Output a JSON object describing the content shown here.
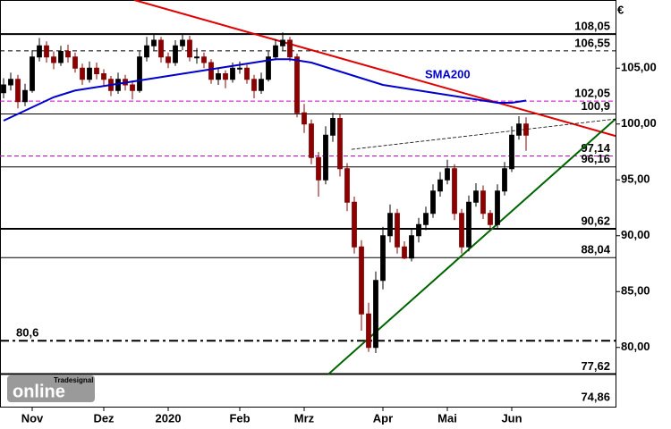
{
  "chart_data": {
    "type": "candlestick",
    "currency": "€",
    "logo_small": "Tradesignal",
    "logo": "online",
    "annotation": {
      "text": "SMA200",
      "color": "#0000cc"
    },
    "categories": [
      null,
      null,
      null,
      null,
      "Nov",
      null,
      null,
      null,
      null,
      null,
      null,
      null,
      null,
      null,
      "Dez",
      null,
      null,
      null,
      null,
      null,
      null,
      null,
      null,
      "2020",
      null,
      null,
      null,
      null,
      null,
      null,
      null,
      null,
      null,
      "Feb",
      null,
      null,
      null,
      null,
      null,
      null,
      null,
      null,
      "Mrz",
      null,
      null,
      null,
      null,
      null,
      null,
      null,
      null,
      null,
      null,
      "Apr",
      null,
      null,
      null,
      null,
      null,
      null,
      null,
      null,
      "Mai",
      null,
      null,
      null,
      null,
      null,
      null,
      null,
      null,
      "Jun",
      null,
      null
    ],
    "candles": [
      [
        102.8,
        104.1,
        102.3,
        103.5
      ],
      [
        103.5,
        104.6,
        103,
        104
      ],
      [
        104,
        104.4,
        101.4,
        102
      ],
      [
        102,
        103.6,
        101.6,
        103
      ],
      [
        103,
        106.6,
        102.8,
        106
      ],
      [
        106,
        107.7,
        105.6,
        107
      ],
      [
        107,
        107.4,
        105.5,
        106
      ],
      [
        106,
        106.5,
        104.9,
        105.5
      ],
      [
        105.5,
        107,
        105.2,
        106.5
      ],
      [
        106.5,
        107.1,
        105.5,
        106
      ],
      [
        106,
        106.4,
        104.6,
        105
      ],
      [
        105,
        105.4,
        103.5,
        104
      ],
      [
        104,
        105.6,
        103.7,
        105
      ],
      [
        105,
        105.5,
        104,
        104.5
      ],
      [
        104.5,
        104.9,
        103.4,
        104
      ],
      [
        104,
        104.3,
        102.5,
        103
      ],
      [
        103,
        104.6,
        102.7,
        104
      ],
      [
        104,
        104.4,
        103,
        103.5
      ],
      [
        103.5,
        103.9,
        102.2,
        103
      ],
      [
        103,
        106.5,
        102.8,
        106
      ],
      [
        106,
        107.8,
        105.6,
        107
      ],
      [
        107,
        108,
        106.6,
        107.5
      ],
      [
        107.5,
        107.8,
        105.5,
        106
      ],
      [
        106,
        106.4,
        105,
        105.5
      ],
      [
        105.5,
        107.5,
        105.2,
        107
      ],
      [
        107,
        108.1,
        106.6,
        107.5
      ],
      [
        107.5,
        107.9,
        105.6,
        106
      ],
      [
        106,
        106.8,
        105.4,
        106
      ],
      [
        106,
        106.4,
        105,
        105.5
      ],
      [
        105.5,
        105.8,
        103.6,
        104
      ],
      [
        104,
        105,
        103.5,
        104.5
      ],
      [
        104.5,
        104.8,
        103.2,
        104
      ],
      [
        104,
        105.5,
        103.7,
        105
      ],
      [
        105,
        105.6,
        104.5,
        105
      ],
      [
        105,
        105.3,
        103.6,
        104
      ],
      [
        104,
        104.4,
        102.3,
        103
      ],
      [
        103,
        104.6,
        102.7,
        104
      ],
      [
        104,
        106.5,
        103.8,
        106
      ],
      [
        106,
        107.6,
        105.7,
        107
      ],
      [
        107,
        108.2,
        106.6,
        107.5
      ],
      [
        107.5,
        107.8,
        105.6,
        106
      ],
      [
        106,
        106.3,
        100.6,
        101
      ],
      [
        101,
        101.8,
        99.2,
        100
      ],
      [
        100,
        100.4,
        96.4,
        97
      ],
      [
        97,
        97.5,
        93.5,
        95
      ],
      [
        95,
        99.8,
        94.6,
        99
      ],
      [
        99,
        101,
        98.4,
        100.5
      ],
      [
        100.5,
        100.9,
        95.3,
        96
      ],
      [
        96,
        96.5,
        92.2,
        93
      ],
      [
        93,
        93.5,
        88.4,
        89
      ],
      [
        89,
        89.6,
        81.5,
        83
      ],
      [
        83,
        84,
        79.6,
        80
      ],
      [
        80,
        86.8,
        79.5,
        86
      ],
      [
        86,
        90.8,
        85.2,
        90
      ],
      [
        90,
        92.8,
        89.4,
        92
      ],
      [
        92,
        92.4,
        88.4,
        89
      ],
      [
        89,
        89.5,
        87.9,
        88
      ],
      [
        88,
        90.6,
        87.7,
        90
      ],
      [
        90,
        91.6,
        89.4,
        91
      ],
      [
        91,
        92.6,
        90.5,
        92
      ],
      [
        92,
        94.6,
        91.6,
        94
      ],
      [
        94,
        95.7,
        93.5,
        95
      ],
      [
        95,
        96.8,
        94.6,
        96
      ],
      [
        96,
        96.4,
        91.4,
        92
      ],
      [
        92,
        92.4,
        88.4,
        89
      ],
      [
        89,
        93.6,
        88.6,
        93
      ],
      [
        93,
        94.7,
        92.6,
        94
      ],
      [
        94,
        94.5,
        91.5,
        92
      ],
      [
        92,
        92.3,
        90.6,
        91
      ],
      [
        91,
        94.6,
        90.7,
        94
      ],
      [
        94,
        96.6,
        93.6,
        96
      ],
      [
        96,
        99.8,
        95.7,
        99
      ],
      [
        99,
        100.7,
        98.6,
        100
      ],
      [
        100,
        100.6,
        97.6,
        99
      ]
    ],
    "up_color": "#000000",
    "down_color": "#8b0000",
    "sma": {
      "name": "SMA200",
      "color": "#0000cc",
      "values": [
        100.3,
        100.6,
        100.9,
        101.2,
        101.5,
        101.8,
        102.1,
        102.4,
        102.6,
        102.8,
        103.0,
        103.1,
        103.2,
        103.3,
        103.4,
        103.5,
        103.6,
        103.7,
        103.8,
        103.9,
        104.0,
        104.1,
        104.2,
        104.3,
        104.4,
        104.5,
        104.6,
        104.7,
        104.8,
        104.9,
        105.0,
        105.1,
        105.2,
        105.3,
        105.4,
        105.5,
        105.6,
        105.7,
        105.8,
        105.8,
        105.8,
        105.7,
        105.6,
        105.5,
        105.3,
        105.1,
        104.9,
        104.7,
        104.5,
        104.3,
        104.1,
        103.9,
        103.7,
        103.5,
        103.4,
        103.3,
        103.2,
        103.1,
        103.0,
        102.9,
        102.8,
        102.7,
        102.6,
        102.5,
        102.4,
        102.3,
        102.2,
        102.1,
        102.0,
        101.9,
        101.9,
        101.9,
        102.0,
        102.1
      ]
    },
    "trendlines": [
      {
        "color": "#e00000",
        "width": 2,
        "dash": "none",
        "x": [
          18.25,
          85.5
        ],
        "y": [
          111.1,
          98.93
        ]
      },
      {
        "color": "#006400",
        "width": 2,
        "dash": "none",
        "x": [
          45.4,
          85.5
        ],
        "y": [
          77.62,
          100.45
        ]
      },
      {
        "color": "#000000",
        "width": 0.8,
        "dash": "4 2",
        "x": [
          48.6,
          85.5
        ],
        "y": [
          97.73,
          100.45
        ]
      }
    ],
    "levels": [
      {
        "value": 108.05,
        "label": "108,05",
        "style": "solid-bold",
        "side": "right"
      },
      {
        "value": 106.55,
        "label": "106,55",
        "style": "dashed",
        "side": "right"
      },
      {
        "value": 102.05,
        "label": "102,05",
        "style": "pink-dashed",
        "side": "right"
      },
      {
        "value": 100.9,
        "label": "100,9",
        "style": "solid",
        "side": "right"
      },
      {
        "value": 97.14,
        "label": "97,14",
        "style": "pink-dashed",
        "side": "right"
      },
      {
        "value": 96.16,
        "label": "96,16",
        "style": "solid",
        "side": "right"
      },
      {
        "value": 90.62,
        "label": "90,62",
        "style": "solid-bold",
        "side": "right"
      },
      {
        "value": 88.04,
        "label": "88,04",
        "style": "solid",
        "side": "right"
      },
      {
        "value": 80.6,
        "label": "80,6",
        "style": "dash-dot",
        "side": "left"
      },
      {
        "value": 77.62,
        "label": "77,62",
        "style": "solid-bold",
        "side": "right"
      },
      {
        "value": 74.86,
        "label": "74,86",
        "style": "none",
        "side": "right"
      }
    ],
    "xlim": [
      -0.5,
      85.5
    ],
    "ylim": [
      74.7,
      111.1
    ],
    "yticks": [
      {
        "value": 80,
        "label": "80,00"
      },
      {
        "value": 85,
        "label": "85,00"
      },
      {
        "value": 90,
        "label": "90,00"
      },
      {
        "value": 95,
        "label": "95,00"
      },
      {
        "value": 100,
        "label": "100,00"
      },
      {
        "value": 105,
        "label": "105,00"
      }
    ]
  }
}
